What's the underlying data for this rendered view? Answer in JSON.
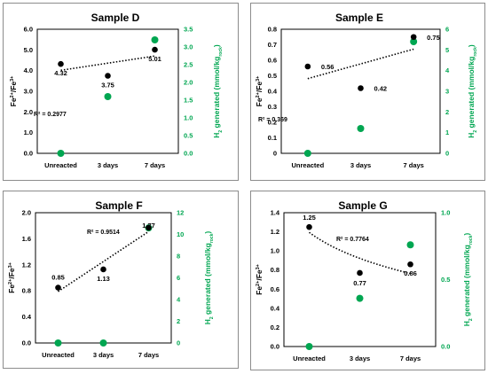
{
  "colors": {
    "fe_series": "#000000",
    "h2_series": "#00a651",
    "trend": "#000000"
  },
  "chart_data": [
    {
      "type": "scatter",
      "title": "Sample D",
      "categories": [
        "Unreacted",
        "3 days",
        "7 days"
      ],
      "ylabel_left": {
        "main": "Fe",
        "sup1": "2+",
        "mid": "/Fe",
        "sup2": "3+"
      },
      "ylabel_right": {
        "main": "H",
        "sub1": "2",
        "mid": " generated (mmol/kg",
        "sub2": "rock",
        "end": ")"
      },
      "ylim_left": [
        0,
        6
      ],
      "yticks_left": [
        "0.0",
        "1.0",
        "2.0",
        "3.0",
        "4.0",
        "5.0",
        "6.0"
      ],
      "ylim_right": [
        0,
        3.5
      ],
      "yticks_right": [
        "0.0",
        "0.5",
        "1.0",
        "1.5",
        "2.0",
        "2.5",
        "3.0",
        "3.5"
      ],
      "series": [
        {
          "axis": "left",
          "values": [
            4.32,
            3.75,
            5.01
          ],
          "labels": [
            "4.32",
            "3.75",
            "5.01"
          ]
        },
        {
          "axis": "right",
          "values": [
            0,
            1.6,
            3.2
          ]
        }
      ],
      "trendline": {
        "type": "linear",
        "r2": "R² = 0.2977"
      },
      "grid": false,
      "legend": "none"
    },
    {
      "type": "scatter",
      "title": "Sample E",
      "categories": [
        "Unreacted",
        "3 days",
        "7 days"
      ],
      "ylabel_left": {
        "main": "Fe",
        "sup1": "2+",
        "mid": "/Fe",
        "sup2": "3+"
      },
      "ylabel_right": {
        "main": "H",
        "sub1": "2",
        "mid": " generated (mmol/kg",
        "sub2": "rock",
        "end": ")"
      },
      "ylim_left": [
        0,
        0.8
      ],
      "yticks_left": [
        "0",
        "0.1",
        "0.2",
        "0.3",
        "0.4",
        "0.5",
        "0.6",
        "0.7",
        "0.8"
      ],
      "ylim_right": [
        0,
        6
      ],
      "yticks_right": [
        "0",
        "1",
        "2",
        "3",
        "4",
        "5",
        "6"
      ],
      "series": [
        {
          "axis": "left",
          "values": [
            0.56,
            0.42,
            0.75
          ],
          "labels": [
            "0.56",
            "0.42",
            "0.75"
          ]
        },
        {
          "axis": "right",
          "values": [
            0,
            1.2,
            5.4
          ]
        }
      ],
      "trendline": {
        "type": "linear",
        "r2": "R² = 0.369"
      },
      "grid": false,
      "legend": "none"
    },
    {
      "type": "scatter",
      "title": "Sample F",
      "categories": [
        "Unreacted",
        "3 days",
        "7 days"
      ],
      "ylabel_left": {
        "main": "Fe",
        "sup1": "2+",
        "mid": "/Fe",
        "sup2": "3+"
      },
      "ylabel_right": {
        "main": "H",
        "sub1": "2",
        "mid": " generated (mmol/kg",
        "sub2": "rock",
        "end": ")"
      },
      "ylim_left": [
        0,
        2
      ],
      "yticks_left": [
        "0.0",
        "0.4",
        "0.8",
        "1.2",
        "1.6",
        "2.0"
      ],
      "ylim_right": [
        0,
        12
      ],
      "yticks_right": [
        "0",
        "2",
        "4",
        "6",
        "8",
        "10",
        "12"
      ],
      "series": [
        {
          "axis": "left",
          "values": [
            0.85,
            1.13,
            1.77
          ],
          "labels": [
            "0.85",
            "1.13",
            "1.77"
          ]
        },
        {
          "axis": "right",
          "values": [
            0,
            0,
            10.6
          ]
        }
      ],
      "trendline": {
        "type": "linear",
        "r2": "R² = 0.9514"
      },
      "grid": false,
      "legend": "none"
    },
    {
      "type": "scatter",
      "title": "Sample G",
      "categories": [
        "Unreacted",
        "3 days",
        "7 days"
      ],
      "ylabel_left": {
        "main": "Fe",
        "sup1": "2+",
        "mid": "/Fe",
        "sup2": "3+"
      },
      "ylabel_right": {
        "main": "H",
        "sub1": "2",
        "mid": " generated (mmol/kg",
        "sub2": "rock",
        "end": ")"
      },
      "ylim_left": [
        0,
        1.4
      ],
      "yticks_left": [
        "0.0",
        "0.2",
        "0.4",
        "0.6",
        "0.8",
        "1.0",
        "1.2",
        "1.4"
      ],
      "ylim_right": [
        0,
        1
      ],
      "yticks_right": [
        "0.0",
        "0.5",
        "1.0"
      ],
      "series": [
        {
          "axis": "left",
          "values": [
            1.25,
            0.77,
            0.86
          ],
          "labels": [
            "1.25",
            "0.77",
            "0.86"
          ]
        },
        {
          "axis": "right",
          "values": [
            0,
            0.36,
            0.76
          ]
        }
      ],
      "trendline": {
        "type": "logarithmic",
        "r2": "R² = 0.7764"
      },
      "grid": false,
      "legend": "none"
    }
  ]
}
